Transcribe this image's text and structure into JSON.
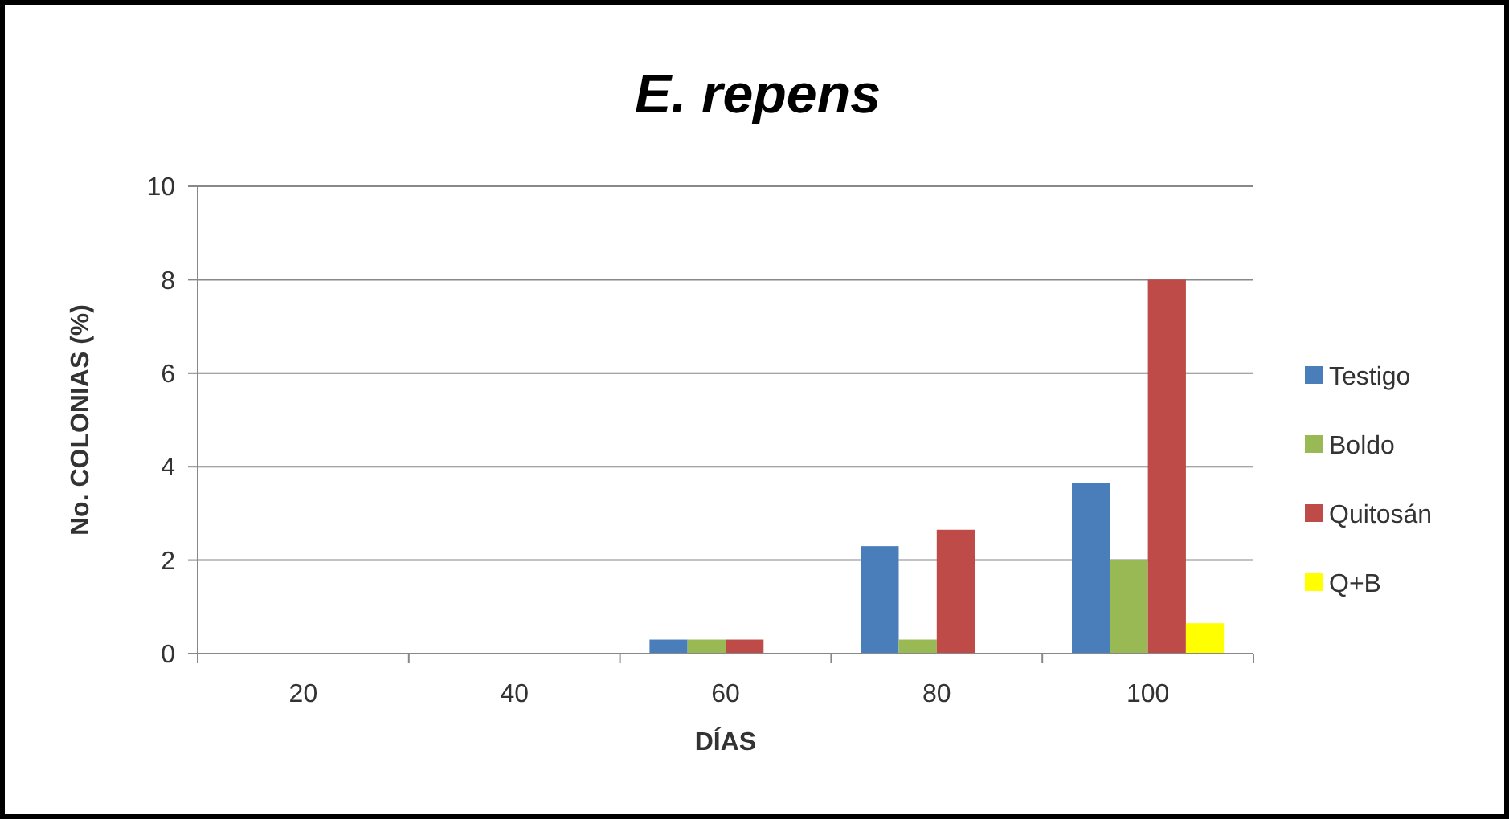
{
  "chart_data": {
    "type": "bar",
    "title": "E. repens",
    "xlabel": "DÍAS",
    "ylabel": "No. COLONIAS (%)",
    "categories": [
      "20",
      "40",
      "60",
      "80",
      "100"
    ],
    "series": [
      {
        "name": "Testigo",
        "color": "#4a7ebb",
        "values": [
          0,
          0,
          0.3,
          2.3,
          3.65
        ]
      },
      {
        "name": "Boldo",
        "color": "#98b954",
        "values": [
          0,
          0,
          0.3,
          0.3,
          2
        ]
      },
      {
        "name": "Quitosán",
        "color": "#be4b48",
        "values": [
          0,
          0,
          0.3,
          2.65,
          8
        ]
      },
      {
        "name": "Q+B",
        "color": "#ffff00",
        "values": [
          0,
          0,
          0,
          0,
          0.65
        ]
      }
    ],
    "ylim": [
      0,
      10
    ],
    "yticks": [
      0,
      2,
      4,
      6,
      8,
      10
    ],
    "grid": "y",
    "legend": "right"
  }
}
